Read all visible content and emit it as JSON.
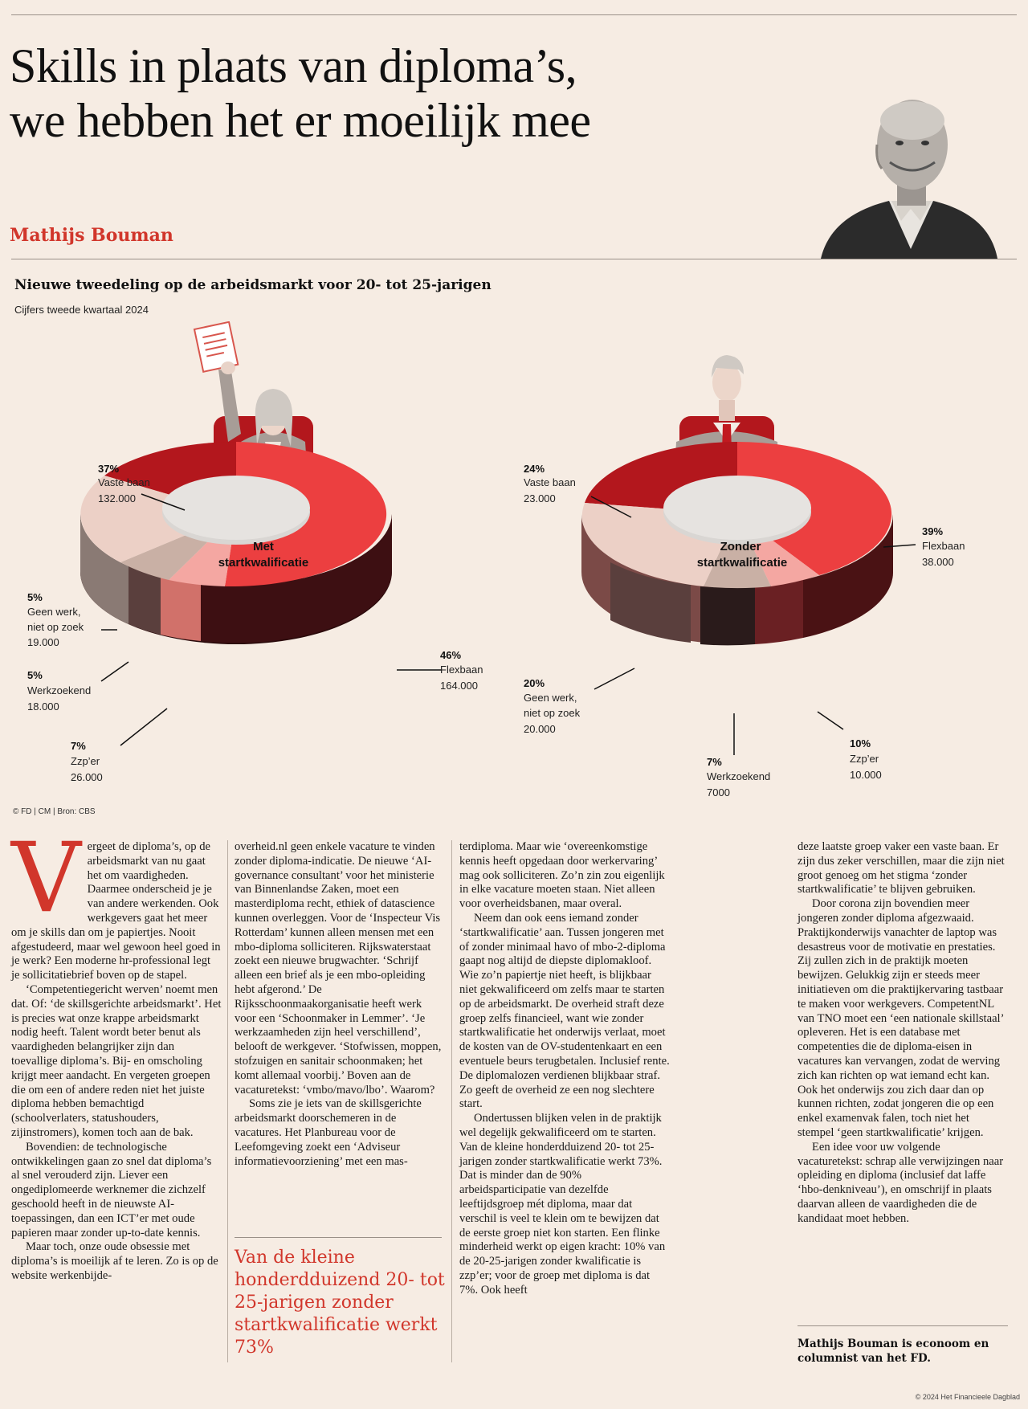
{
  "headline": {
    "line1": "Skills in plaats van diploma’s,",
    "line2": "we hebben het er moeilijk mee"
  },
  "author": "Mathijs Bouman",
  "chart": {
    "title": "Nieuwe tweedeling op de arbeidsmarkt voor 20- tot 25-jarigen",
    "subtitle": "Cijfers tweede kwartaal 2024",
    "credit": "© FD | CM | Bron: CBS",
    "left": {
      "center_line1": "Met",
      "center_line2": "startkwalificatie",
      "vaste_pct": "37%",
      "vaste_name": "Vaste baan",
      "vaste_count": "132.000",
      "flex_pct": "46%",
      "flex_name": "Flexbaan",
      "flex_count": "164.000",
      "zzp_pct": "7%",
      "zzp_name": "Zzp’er",
      "zzp_count": "26.000",
      "werk_pct": "5%",
      "werk_name": "Werkzoekend",
      "werk_count": "18.000",
      "geen_pct": "5%",
      "geen_name1": "Geen werk,",
      "geen_name2": "niet op zoek",
      "geen_count": "19.000"
    },
    "right": {
      "center_line1": "Zonder",
      "center_line2": "startkwalificatie",
      "vaste_pct": "24%",
      "vaste_name": "Vaste baan",
      "vaste_count": "23.000",
      "flex_pct": "39%",
      "flex_name": "Flexbaan",
      "flex_count": "38.000",
      "zzp_pct": "10%",
      "zzp_name": "Zzp’er",
      "zzp_count": "10.000",
      "werk_pct": "7%",
      "werk_name": "Werkzoekend",
      "werk_count": "7000",
      "geen_pct": "20%",
      "geen_name1": "Geen werk,",
      "geen_name2": "niet op zoek",
      "geen_count": "20.000"
    }
  },
  "chart_data": [
    {
      "type": "pie",
      "title": "Met startkwalificatie",
      "categories": [
        "Vaste baan",
        "Flexbaan",
        "Zzp’er",
        "Werkzoekend",
        "Geen werk, niet op zoek"
      ],
      "values": [
        37,
        46,
        7,
        5,
        5
      ],
      "counts": [
        132000,
        164000,
        26000,
        18000,
        19000
      ]
    },
    {
      "type": "pie",
      "title": "Zonder startkwalificatie",
      "categories": [
        "Vaste baan",
        "Flexbaan",
        "Zzp’er",
        "Werkzoekend",
        "Geen werk, niet op zoek"
      ],
      "values": [
        24,
        39,
        10,
        7,
        20
      ],
      "counts": [
        23000,
        38000,
        10000,
        7000,
        20000
      ]
    }
  ],
  "colors": {
    "vaste": "#b3171d",
    "flex": "#ec3f40",
    "zzp": "#f4a7a2",
    "werk": "#c9b0a5",
    "geen": "#ecd0c6",
    "accent": "#d1362b"
  },
  "article": {
    "c1_dropcap": "V",
    "c1_p1": "ergeet de diploma’s, op de arbeidsmarkt van nu gaat het om vaardigheden. Daarmee onderscheid je je van andere werkenden. Ook werkgevers gaat het meer om je skills dan om je papiertjes. Nooit afgestudeerd, maar wel gewoon heel goed in je werk? Een moderne hr-professional legt je sollicitatiebrief boven op de stapel.",
    "c1_p2": "‘Competentiegericht werven’ noemt men dat. Of: ‘de skillsgerichte arbeidsmarkt’. Het is precies wat onze krappe arbeidsmarkt nodig heeft. Talent wordt beter benut als vaardigheden belangrijker zijn dan toevallige diploma’s. Bij- en omscholing krijgt meer aandacht. En vergeten groepen die om een of andere reden niet het juiste diploma hebben bemachtigd (schoolverlaters, statushouders, zijinstromers), komen toch aan de bak.",
    "c1_p3": "Bovendien: de technologische ontwikkelingen gaan zo snel dat diploma’s al snel verouderd zijn. Liever een ongediplomeerde werknemer die zichzelf geschoold heeft in de nieuwste AI-toepassingen, dan een ICT’er met oude papieren maar zonder up-to-date kennis.",
    "c1_p4": "Maar toch, onze oude obsessie met diploma’s is moeilijk af te leren. Zo is op de website werkenbijde-",
    "c2_p1": "overheid.nl geen enkele vacature te vinden zonder diploma-indicatie. De nieuwe ‘AI-governance consultant’ voor het ministerie van Binnenlandse Zaken, moet een masterdiploma recht, ethiek of datascience kunnen overleggen. Voor de ‘Inspecteur Vis Rotterdam’ kunnen alleen mensen met een mbo-diploma solliciteren. Rijkswaterstaat zoekt een nieuwe brugwachter. ‘Schrijf alleen een brief als je een mbo-opleiding hebt afgerond.’ De Rijksschoonmaakorganisatie heeft werk voor een ‘Schoonmaker in Lemmer’. ‘Je werkzaamheden zijn heel verschillend’, belooft de werkgever. ‘Stofwissen, moppen, stofzuigen en sanitair schoonmaken; het komt allemaal voorbij.’ Boven aan de vacaturetekst: ‘vmbo/mavo/lbo’. Waarom?",
    "c2_p2": "Soms zie je iets van de skillsgerichte arbeidsmarkt doorschemeren in de vacatures. Het Planbureau voor de Leefomgeving zoekt een ‘Adviseur informatievoorziening’ met een mas-",
    "pull_quote": "Van de kleine honderdduizend 20- tot 25-jarigen zonder startkwalificatie werkt 73%",
    "c3_p1": "terdiploma. Maar wie ‘overeenkomstige kennis heeft opgedaan door werkervaring’ mag ook solliciteren. Zo’n zin zou eigenlijk in elke vacature moeten staan. Niet alleen voor overheidsbanen, maar overal.",
    "c3_p2": "Neem dan ook eens iemand zonder ‘startkwalificatie’ aan. Tussen jongeren met of zonder minimaal havo of mbo-2-diploma gaapt nog altijd de diepste diplomakloof. Wie zo’n papiertje niet heeft, is blijkbaar niet gekwalificeerd om zelfs maar te starten op de arbeidsmarkt. De overheid straft deze groep zelfs financieel, want wie zonder startkwalificatie het onderwijs verlaat, moet de kosten van de OV-studentenkaart en een eventuele beurs terugbetalen. Inclusief rente. De diplomalozen verdienen blijkbaar straf. Zo geeft de overheid ze een nog slechtere start.",
    "c3_p3": "Ondertussen blijken velen in de praktijk wel degelijk gekwalificeerd om te starten. Van de kleine honderdduizend 20- tot 25-jarigen zonder startkwalificatie werkt 73%. Dat is minder dan de 90% arbeidsparticipatie van dezelfde leeftijdsgroep mét diploma, maar dat verschil is veel te klein om te bewijzen dat de eerste groep niet kon starten. Een flinke minderheid werkt op eigen kracht: 10% van de 20-25-jarigen zonder kwalificatie is zzp’er; voor de groep met diploma is dat 7%. Ook heeft",
    "c4_p1": "deze laatste groep vaker een vaste baan. Er zijn dus zeker verschillen, maar die zijn niet groot genoeg om het stigma ‘zonder startkwalificatie’ te blijven gebruiken.",
    "c4_p2": "Door corona zijn bovendien meer jongeren zonder diploma afgezwaaid. Praktijkonderwijs vanachter de laptop was desastreus voor de motivatie en prestaties. Zij zullen zich in de praktijk moeten bewijzen. Gelukkig zijn er steeds meer initiatieven om die praktijkervaring tastbaar te maken voor werkgevers. CompetentNL van TNO moet een ‘een nationale skillstaal’ opleveren. Het is een database met competenties die de diploma-eisen in vacatures kan vervangen, zodat de werving zich kan richten op wat iemand echt kan. Ook het onderwijs zou zich daar dan op kunnen richten, zodat jongeren die op een enkel examenvak falen, toch niet het stempel ‘geen startkwalificatie’ krijgen.",
    "c4_p3": "Een idee voor uw volgende vacaturetekst: schrap alle verwijzingen naar opleiding en diploma (inclusief dat laffe ‘hbo-denkniveau’), en omschrijf in plaats daarvan alleen de vaardigheden die de kandidaat moet hebben.",
    "bio": "Mathijs Bouman is econoom en columnist van het FD."
  },
  "footer": "© 2024 Het Financieele Dagblad"
}
